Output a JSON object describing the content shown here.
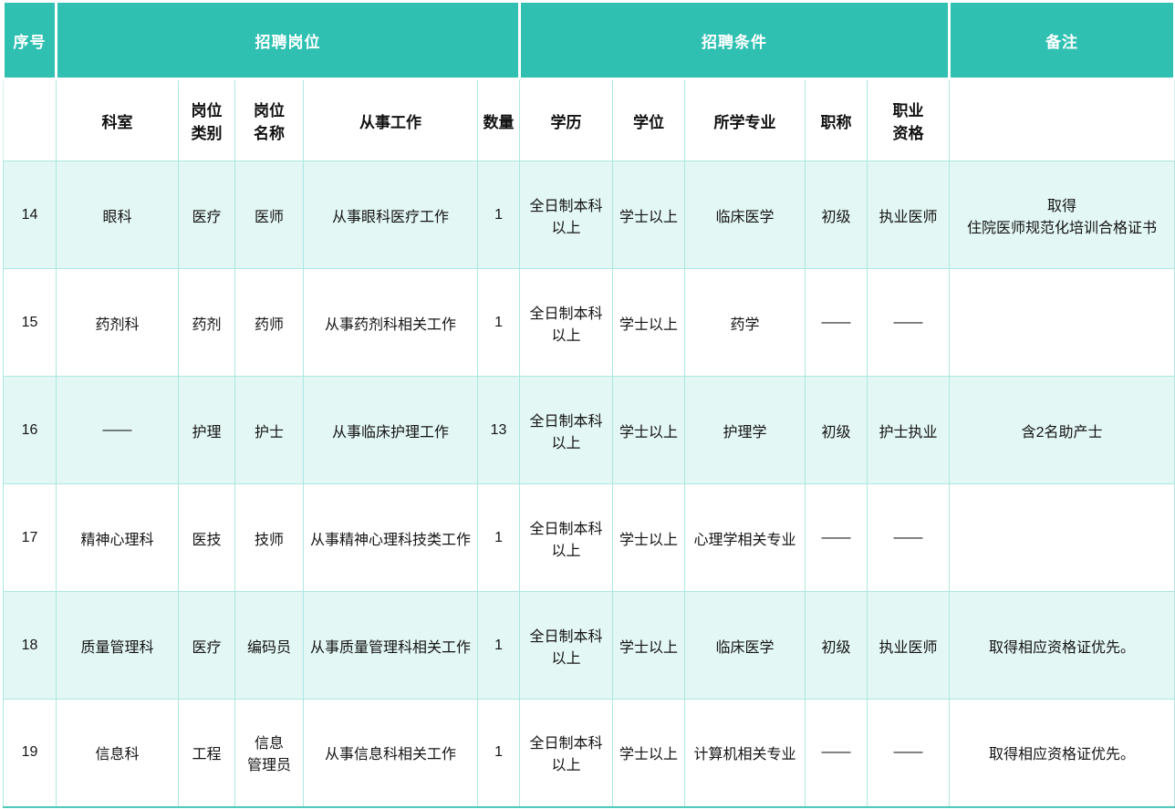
{
  "colors": {
    "accent_teal": "#2fc0b2",
    "row_alt_mint": "#e3f7f4",
    "grid_line": "#ace8e1"
  },
  "table": {
    "header_row1": {
      "seq": "序号",
      "job_group": "招聘岗位",
      "condition_group": "招聘条件",
      "remark": "备注"
    },
    "header_row2": {
      "dept": "科室",
      "category": "岗位\n类别",
      "post_name": "岗位\n名称",
      "work": "从事工作",
      "quantity": "数量",
      "education": "学历",
      "degree": "学位",
      "major": "所学专业",
      "title": "职称",
      "qualification": "职业\n资格"
    },
    "rows": [
      [
        "14",
        "眼科",
        "医疗",
        "医师",
        "从事眼科医疗工作",
        "1",
        "全日制本科\n以上",
        "学士以上",
        "临床医学",
        "初级",
        "执业医师",
        "取得\n住院医师规范化培训合格证书"
      ],
      [
        "15",
        "药剂科",
        "药剂",
        "药师",
        "从事药剂科相关工作",
        "1",
        "全日制本科\n以上",
        "学士以上",
        "药学",
        "——",
        "——",
        ""
      ],
      [
        "16",
        "——",
        "护理",
        "护士",
        "从事临床护理工作",
        "13",
        "全日制本科\n以上",
        "学士以上",
        "护理学",
        "初级",
        "护士执业",
        "含2名助产士"
      ],
      [
        "17",
        "精神心理科",
        "医技",
        "技师",
        "从事精神心理科技类工作",
        "1",
        "全日制本科\n以上",
        "学士以上",
        "心理学相关专业",
        "——",
        "——",
        ""
      ],
      [
        "18",
        "质量管理科",
        "医疗",
        "编码员",
        "从事质量管理科相关工作",
        "1",
        "全日制本科\n以上",
        "学士以上",
        "临床医学",
        "初级",
        "执业医师",
        "取得相应资格证优先。"
      ],
      [
        "19",
        "信息科",
        "工程",
        "信息\n管理员",
        "从事信息科相关工作",
        "1",
        "全日制本科\n以上",
        "学士以上",
        "计算机相关专业",
        "——",
        "——",
        "取得相应资格证优先。"
      ]
    ]
  }
}
